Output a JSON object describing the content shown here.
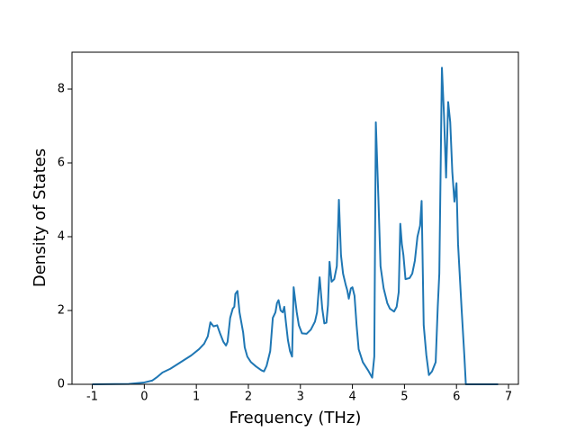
{
  "chart_data": {
    "type": "line",
    "xlabel": "Frequency (THz)",
    "ylabel": "Density of States",
    "color": "#1f77b4",
    "grid": false,
    "xlim": [
      -1.39,
      7.19
    ],
    "ylim": [
      0,
      9.0
    ],
    "xticks": [
      -1,
      0,
      1,
      2,
      3,
      4,
      5,
      6,
      7
    ],
    "yticks": [
      0,
      2,
      4,
      6,
      8
    ],
    "x": [
      -1.0,
      -0.3,
      0,
      0.15,
      0.25,
      0.35,
      0.5,
      0.7,
      0.9,
      1.05,
      1.15,
      1.22,
      1.27,
      1.33,
      1.4,
      1.45,
      1.52,
      1.57,
      1.6,
      1.65,
      1.7,
      1.73,
      1.75,
      1.79,
      1.83,
      1.9,
      1.93,
      1.98,
      2.05,
      2.15,
      2.25,
      2.3,
      2.35,
      2.42,
      2.47,
      2.52,
      2.55,
      2.58,
      2.62,
      2.66,
      2.69,
      2.72,
      2.76,
      2.8,
      2.84,
      2.87,
      2.93,
      2.97,
      3.03,
      3.12,
      3.2,
      3.28,
      3.32,
      3.37,
      3.42,
      3.46,
      3.5,
      3.53,
      3.56,
      3.6,
      3.65,
      3.7,
      3.74,
      3.78,
      3.82,
      3.87,
      3.9,
      3.93,
      3.97,
      4.0,
      4.04,
      4.08,
      4.12,
      4.2,
      4.3,
      4.38,
      4.42,
      4.45,
      4.5,
      4.54,
      4.6,
      4.67,
      4.72,
      4.8,
      4.85,
      4.89,
      4.92,
      4.95,
      4.98,
      5.02,
      5.1,
      5.15,
      5.2,
      5.25,
      5.3,
      5.33,
      5.37,
      5.42,
      5.47,
      5.53,
      5.6,
      5.64,
      5.67,
      5.72,
      5.76,
      5.8,
      5.84,
      5.88,
      5.92,
      5.96,
      6.0,
      6.03,
      6.1,
      6.15,
      6.18,
      6.5,
      6.8
    ],
    "values": [
      0,
      0.01,
      0.05,
      0.1,
      0.2,
      0.32,
      0.42,
      0.6,
      0.78,
      0.95,
      1.1,
      1.3,
      1.68,
      1.57,
      1.6,
      1.4,
      1.15,
      1.05,
      1.15,
      1.8,
      2.05,
      2.1,
      2.45,
      2.53,
      1.95,
      1.4,
      1.0,
      0.75,
      0.6,
      0.48,
      0.38,
      0.35,
      0.5,
      0.9,
      1.8,
      1.95,
      2.2,
      2.28,
      2.0,
      1.95,
      2.1,
      1.7,
      1.2,
      0.9,
      0.75,
      2.63,
      1.95,
      1.6,
      1.38,
      1.37,
      1.48,
      1.7,
      1.95,
      2.9,
      2.05,
      1.65,
      1.67,
      2.15,
      3.32,
      2.78,
      2.85,
      3.2,
      5.0,
      3.5,
      3.0,
      2.7,
      2.55,
      2.32,
      2.6,
      2.63,
      2.4,
      1.6,
      0.95,
      0.6,
      0.38,
      0.18,
      0.75,
      7.1,
      5.0,
      3.2,
      2.6,
      2.2,
      2.05,
      1.97,
      2.1,
      2.5,
      4.35,
      3.8,
      3.5,
      2.85,
      2.88,
      3.0,
      3.35,
      4.0,
      4.3,
      4.97,
      1.6,
      0.8,
      0.25,
      0.35,
      0.6,
      2.1,
      3.0,
      8.58,
      7.3,
      5.6,
      7.65,
      7.1,
      5.75,
      4.95,
      5.45,
      3.8,
      2.0,
      0.8,
      0,
      0,
      0
    ]
  }
}
